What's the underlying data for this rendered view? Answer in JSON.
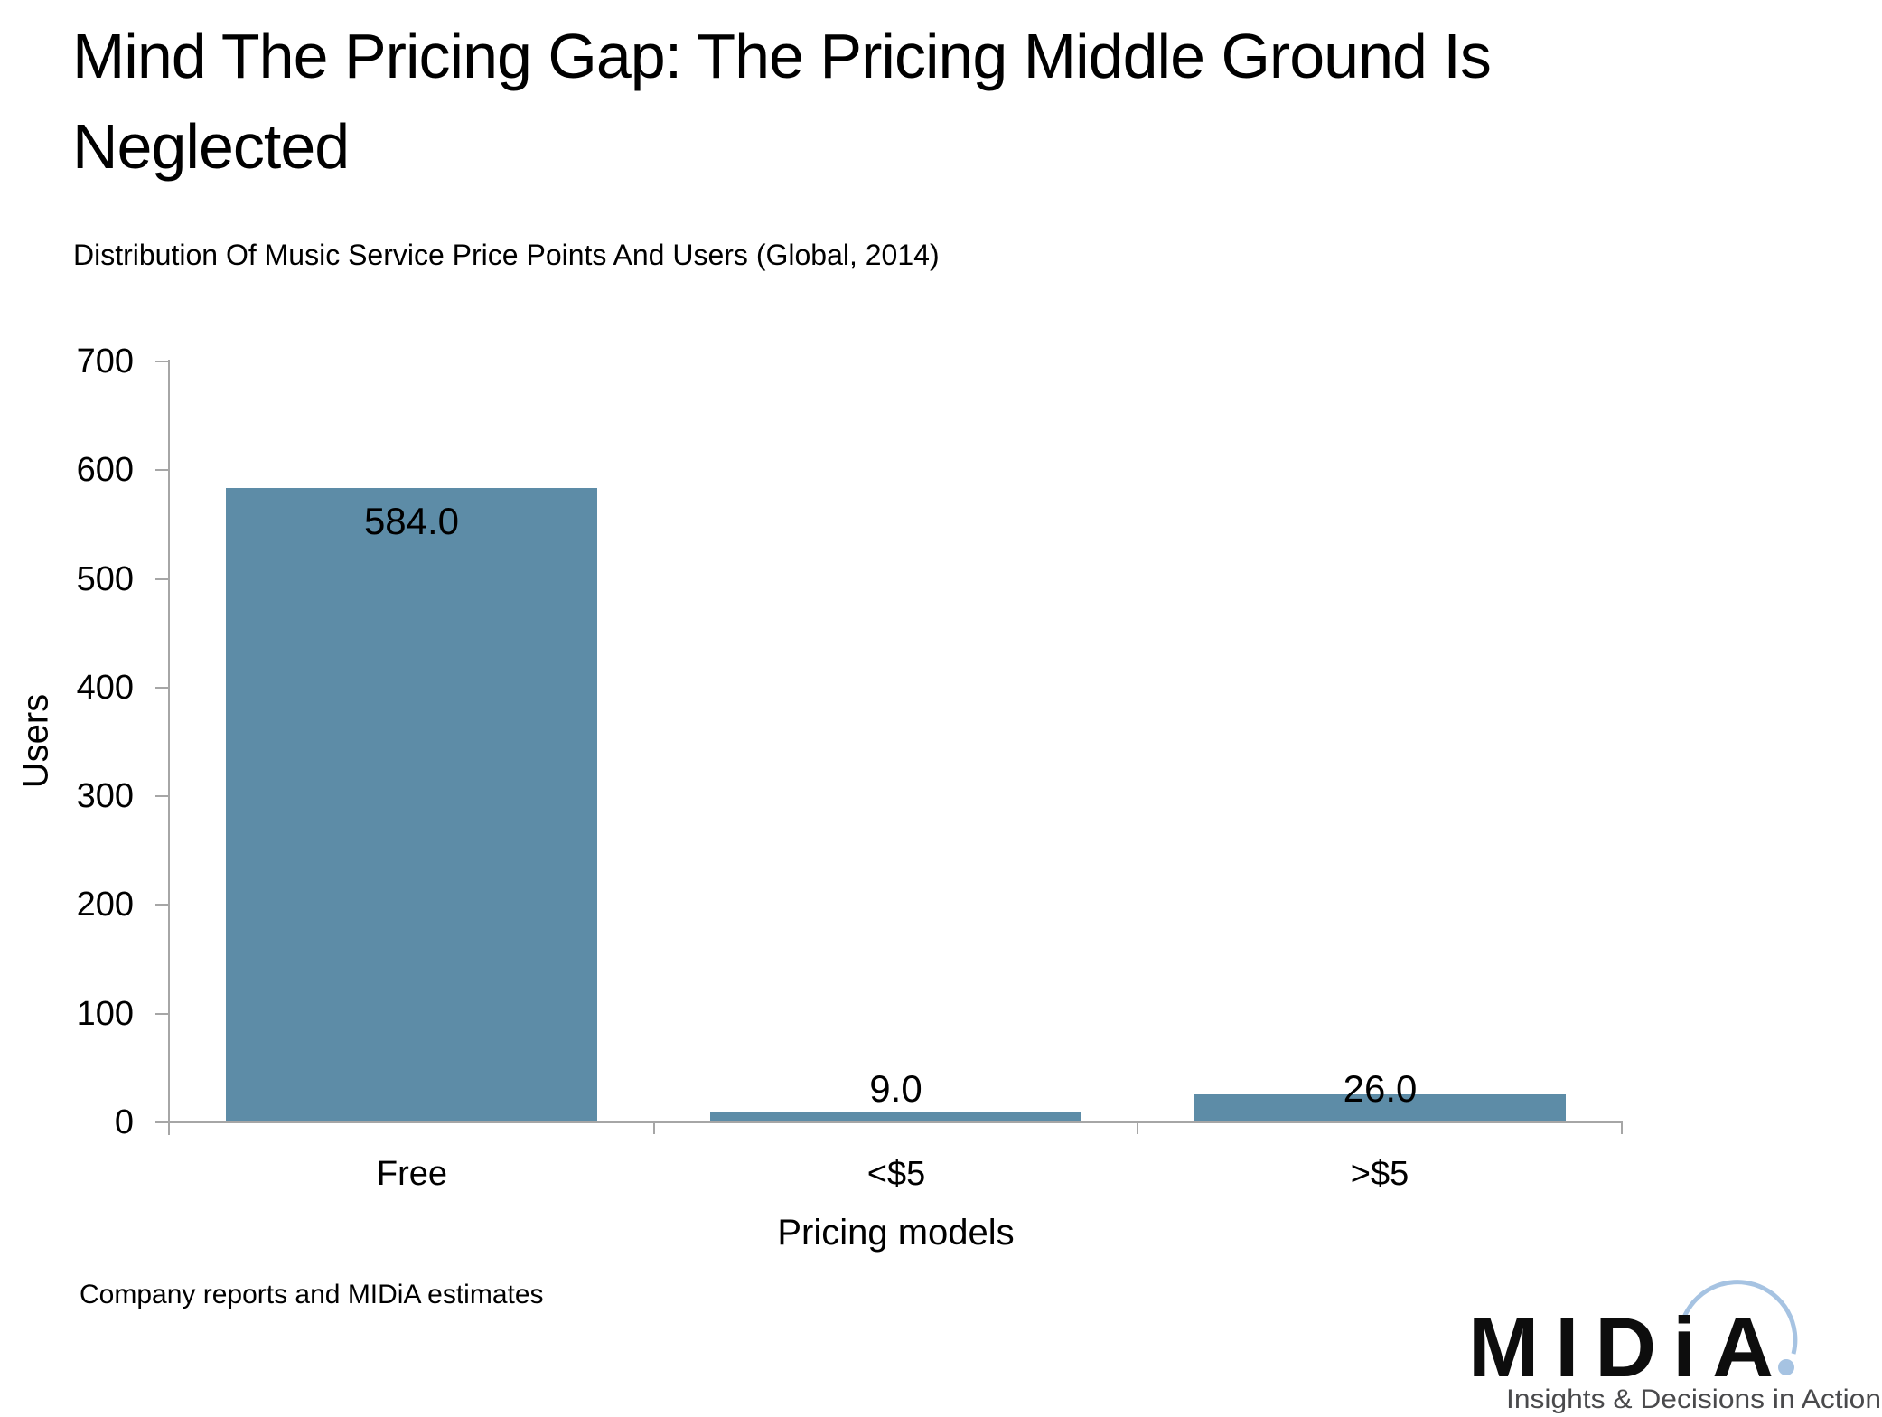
{
  "header": {
    "title": "Mind The Pricing Gap: The Pricing Middle Ground Is Neglected",
    "title_lines": [
      "Mind The Pricing Gap: The Pricing Middle Ground Is",
      "Neglected"
    ]
  },
  "chart_data": {
    "type": "bar",
    "title": "Distribution Of Music Service Price Points And Users (Global, 2014)",
    "categories": [
      "Free",
      "<$5",
      ">$5"
    ],
    "values": [
      584.0,
      9.0,
      26.0
    ],
    "data_labels": [
      "584.0",
      "9.0",
      "26.0"
    ],
    "xlabel": "Pricing models",
    "ylabel": "Users",
    "ylim": [
      0,
      700
    ],
    "yticks": [
      0,
      100,
      200,
      300,
      400,
      500,
      600,
      700
    ],
    "ytick_labels": [
      "0",
      "100",
      "200",
      "300",
      "400",
      "500",
      "600",
      "700"
    ],
    "grid": false,
    "legend": false,
    "bar_width_ratio": 0.768,
    "bar_color": "#5D8CA7",
    "axis_color": "#A6A6A6",
    "label_color": "#000000"
  },
  "footer": {
    "source": "Company reports and MIDiA estimates"
  },
  "logo": {
    "wordmark": "MIDiA",
    "tagline": "Insights & Decisions in Action",
    "wordmark_color": "#0d0d0d",
    "tagline_color": "#4A4A4C",
    "arc_color": "#A6C3E2"
  }
}
